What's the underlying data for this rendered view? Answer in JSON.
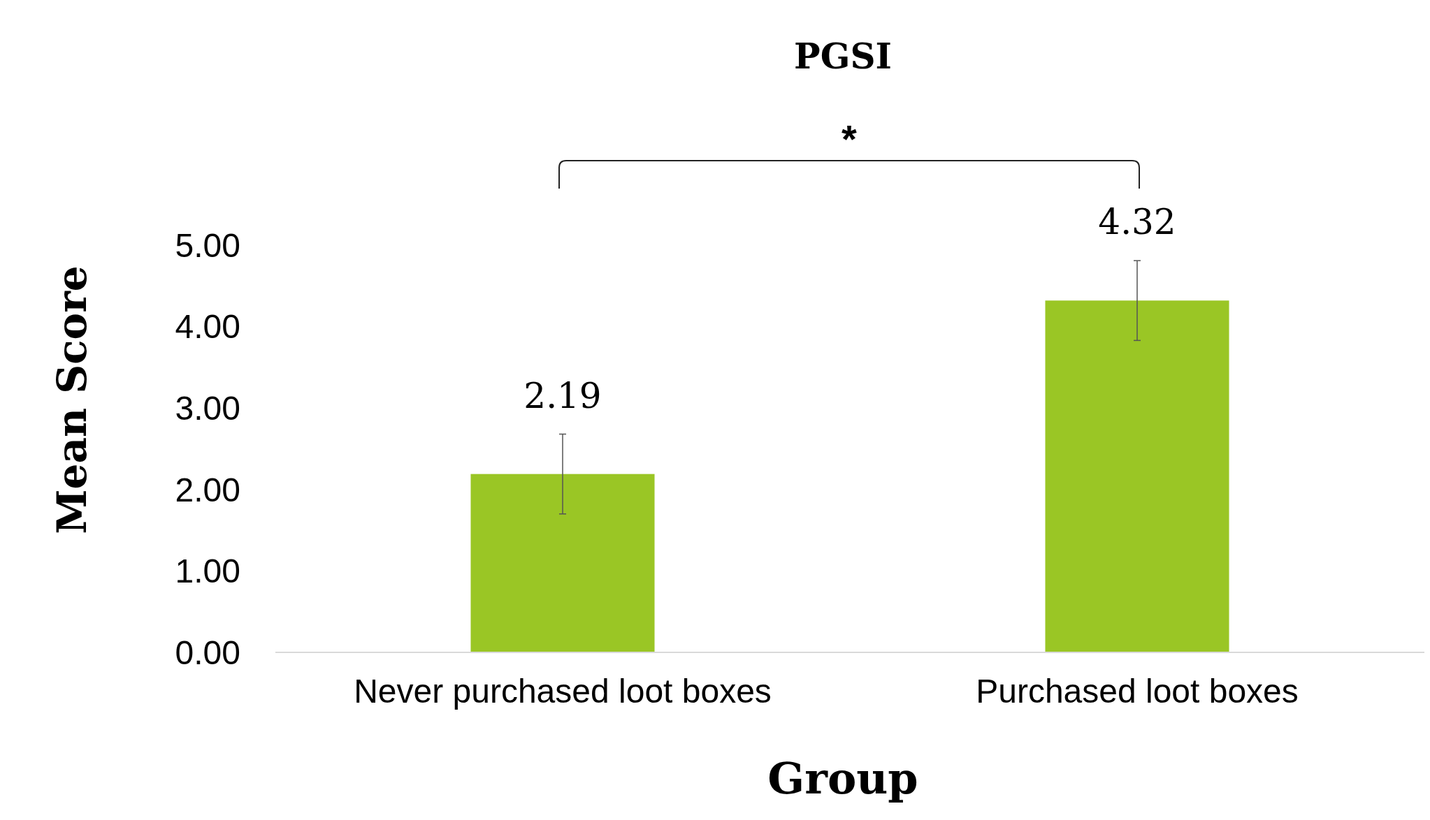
{
  "chart_data": {
    "type": "bar",
    "title": "PGSI",
    "xlabel": "Group",
    "ylabel": "Mean Score",
    "categories": [
      "Never purchased loot boxes",
      "Purchased loot boxes"
    ],
    "values": [
      2.19,
      4.32
    ],
    "errors": [
      0.49,
      0.49
    ],
    "color": "#9ac625",
    "data_labels": true,
    "ylim": [
      0,
      5
    ],
    "yticks": [
      {
        "value": 0,
        "label": "0.00"
      },
      {
        "value": 1,
        "label": "1.00"
      },
      {
        "value": 2,
        "label": "2.00"
      },
      {
        "value": 3,
        "label": "3.00"
      },
      {
        "value": 4,
        "label": "4.00"
      },
      {
        "value": 5,
        "label": "5.00"
      }
    ],
    "grid": false,
    "annotations": [
      "*"
    ]
  }
}
